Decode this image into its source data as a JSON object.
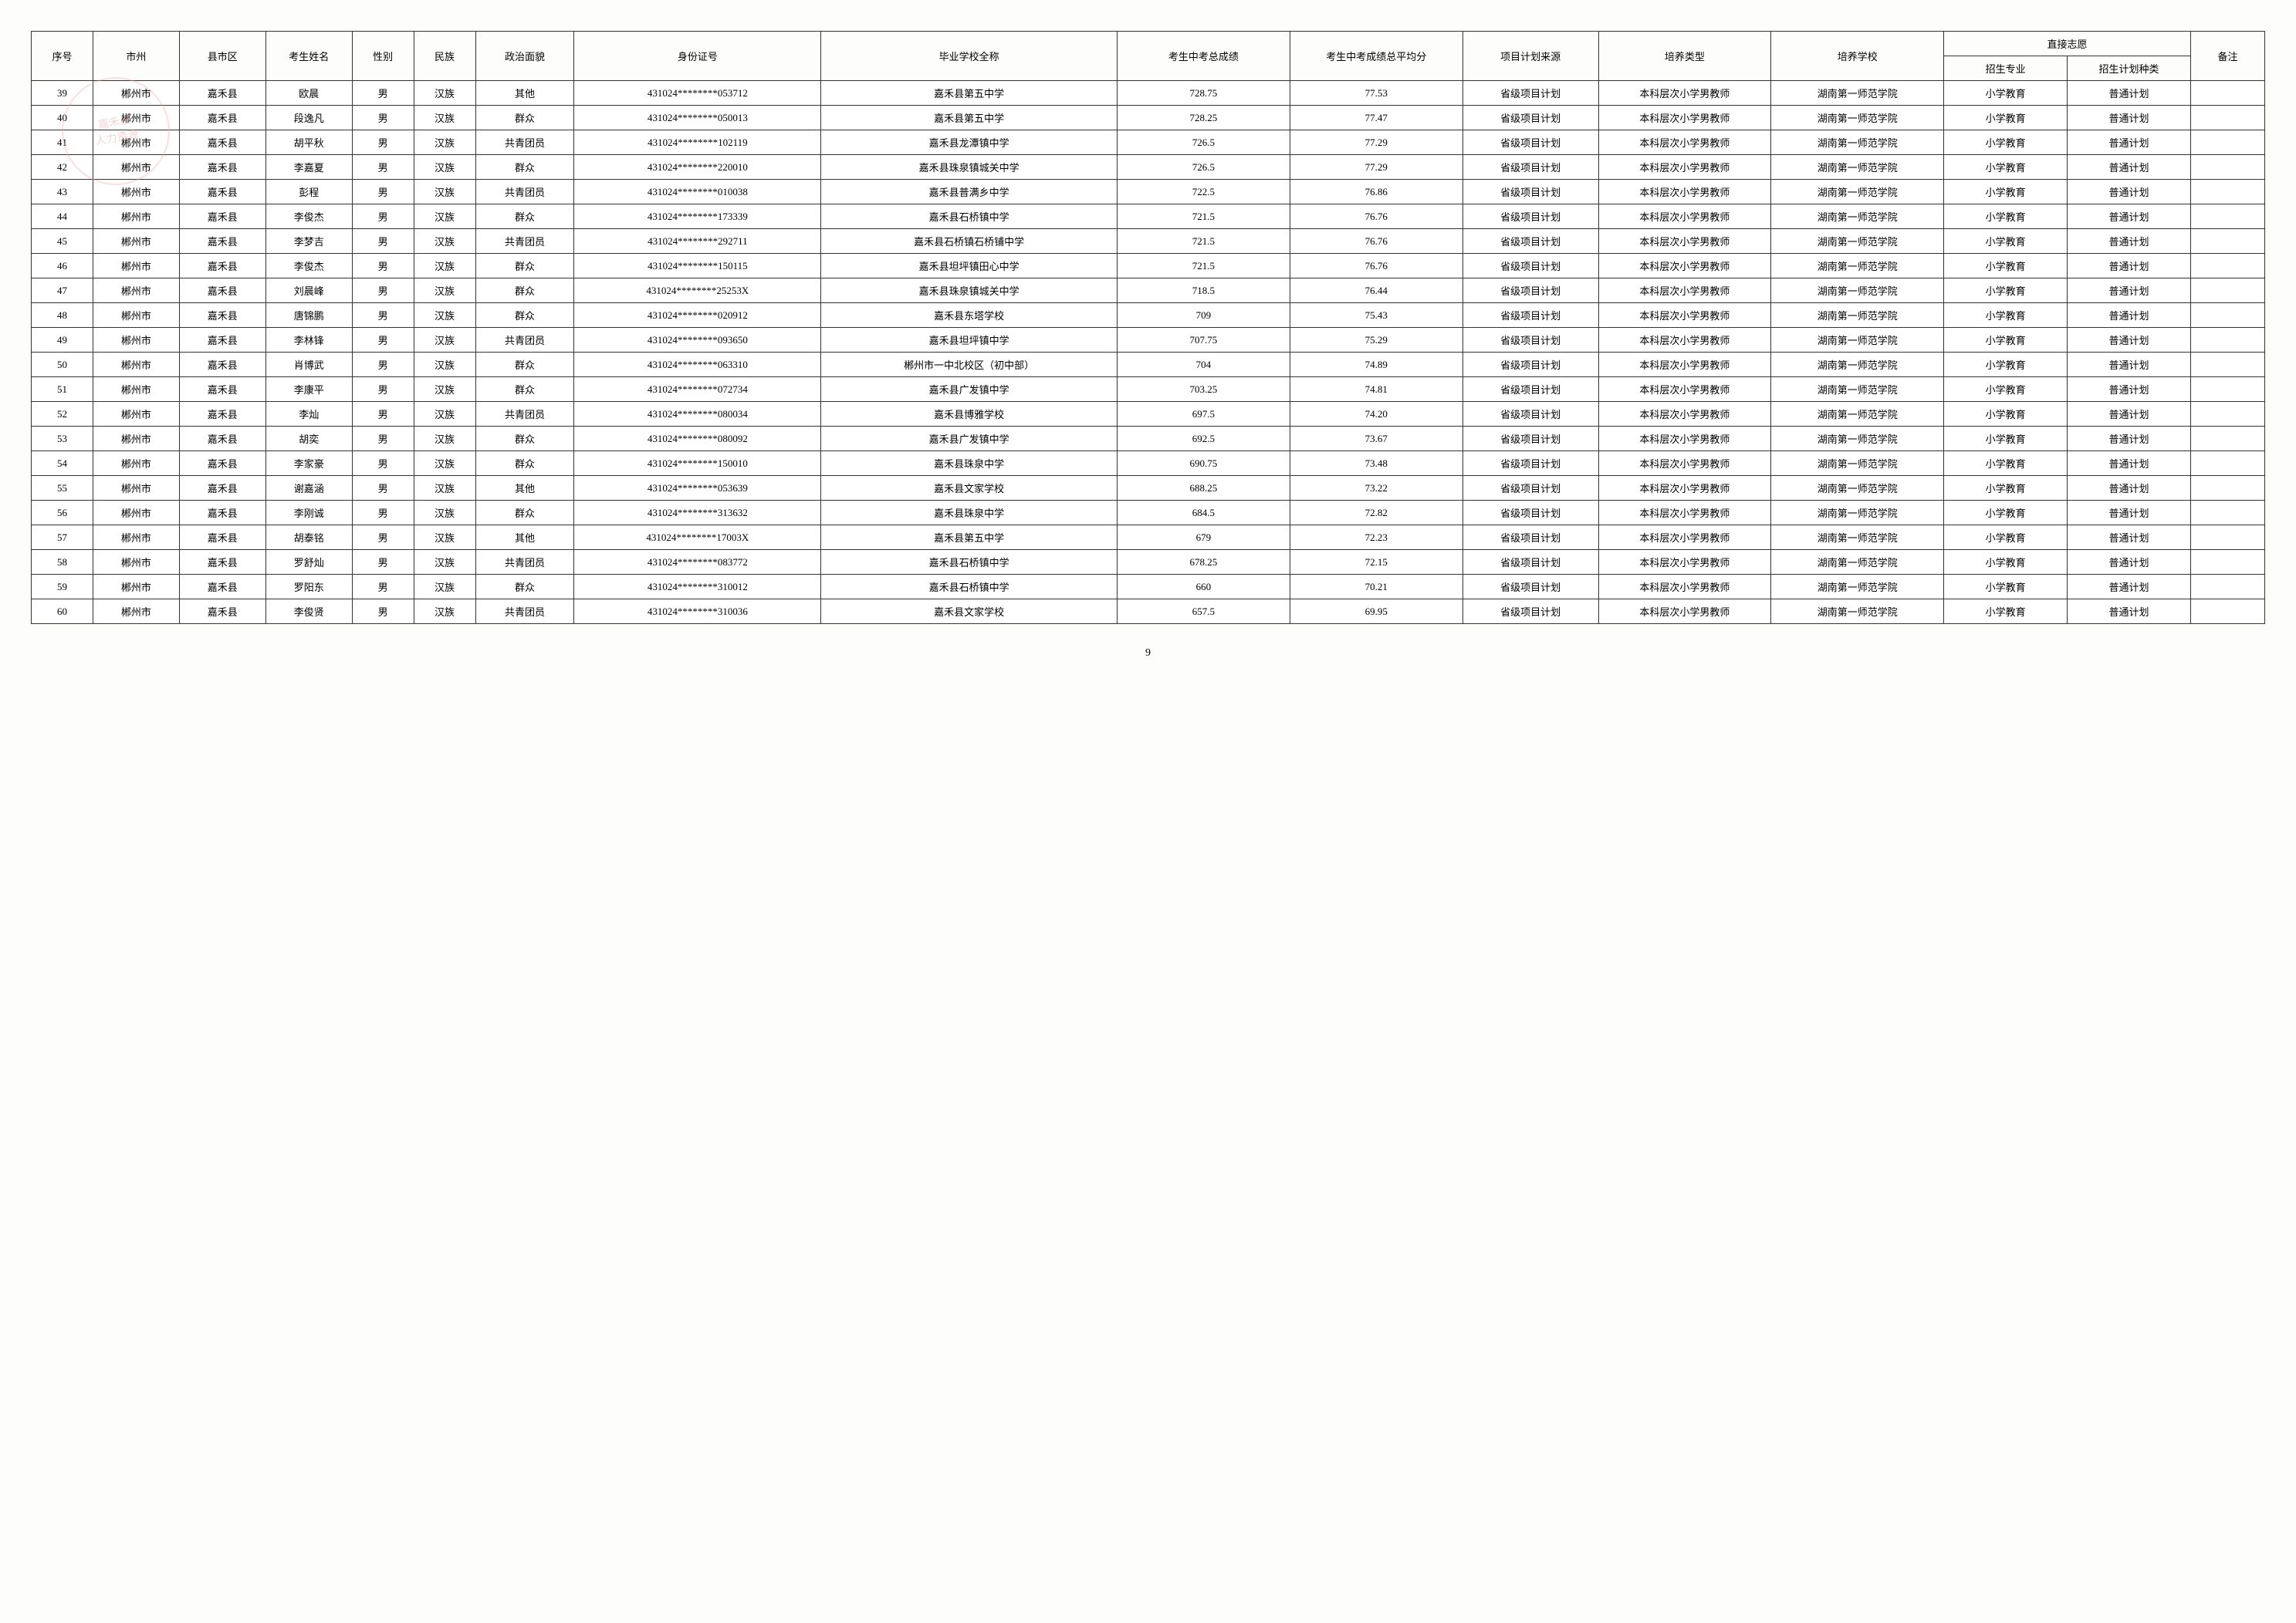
{
  "watermark": {
    "line1": "嘉禾县",
    "line2": "人力资源"
  },
  "headers": {
    "seq": "序号",
    "city": "市州",
    "county": "县市区",
    "name": "考生姓名",
    "gender": "性别",
    "ethnic": "民族",
    "politics": "政治面貌",
    "id": "身份证号",
    "school": "毕业学校全称",
    "score": "考生中考总成绩",
    "avg": "考生中考成绩总平均分",
    "source": "项目计划来源",
    "type": "培养类型",
    "univ": "培养学校",
    "wish_group": "直接志愿",
    "major": "招生专业",
    "plan": "招生计划种类",
    "remark": "备注"
  },
  "rows": [
    {
      "seq": "39",
      "city": "郴州市",
      "county": "嘉禾县",
      "name": "欧晨",
      "gender": "男",
      "ethnic": "汉族",
      "politics": "其他",
      "id": "431024********053712",
      "school": "嘉禾县第五中学",
      "score": "728.75",
      "avg": "77.53",
      "source": "省级项目计划",
      "type": "本科层次小学男教师",
      "univ": "湖南第一师范学院",
      "major": "小学教育",
      "plan": "普通计划",
      "remark": ""
    },
    {
      "seq": "40",
      "city": "郴州市",
      "county": "嘉禾县",
      "name": "段逸凡",
      "gender": "男",
      "ethnic": "汉族",
      "politics": "群众",
      "id": "431024********050013",
      "school": "嘉禾县第五中学",
      "score": "728.25",
      "avg": "77.47",
      "source": "省级项目计划",
      "type": "本科层次小学男教师",
      "univ": "湖南第一师范学院",
      "major": "小学教育",
      "plan": "普通计划",
      "remark": ""
    },
    {
      "seq": "41",
      "city": "郴州市",
      "county": "嘉禾县",
      "name": "胡平秋",
      "gender": "男",
      "ethnic": "汉族",
      "politics": "共青团员",
      "id": "431024********102119",
      "school": "嘉禾县龙潭镇中学",
      "score": "726.5",
      "avg": "77.29",
      "source": "省级项目计划",
      "type": "本科层次小学男教师",
      "univ": "湖南第一师范学院",
      "major": "小学教育",
      "plan": "普通计划",
      "remark": ""
    },
    {
      "seq": "42",
      "city": "郴州市",
      "county": "嘉禾县",
      "name": "李嘉夏",
      "gender": "男",
      "ethnic": "汉族",
      "politics": "群众",
      "id": "431024********220010",
      "school": "嘉禾县珠泉镇城关中学",
      "score": "726.5",
      "avg": "77.29",
      "source": "省级项目计划",
      "type": "本科层次小学男教师",
      "univ": "湖南第一师范学院",
      "major": "小学教育",
      "plan": "普通计划",
      "remark": ""
    },
    {
      "seq": "43",
      "city": "郴州市",
      "county": "嘉禾县",
      "name": "彭程",
      "gender": "男",
      "ethnic": "汉族",
      "politics": "共青团员",
      "id": "431024********010038",
      "school": "嘉禾县普满乡中学",
      "score": "722.5",
      "avg": "76.86",
      "source": "省级项目计划",
      "type": "本科层次小学男教师",
      "univ": "湖南第一师范学院",
      "major": "小学教育",
      "plan": "普通计划",
      "remark": ""
    },
    {
      "seq": "44",
      "city": "郴州市",
      "county": "嘉禾县",
      "name": "李俊杰",
      "gender": "男",
      "ethnic": "汉族",
      "politics": "群众",
      "id": "431024********173339",
      "school": "嘉禾县石桥镇中学",
      "score": "721.5",
      "avg": "76.76",
      "source": "省级项目计划",
      "type": "本科层次小学男教师",
      "univ": "湖南第一师范学院",
      "major": "小学教育",
      "plan": "普通计划",
      "remark": ""
    },
    {
      "seq": "45",
      "city": "郴州市",
      "county": "嘉禾县",
      "name": "李梦吉",
      "gender": "男",
      "ethnic": "汉族",
      "politics": "共青团员",
      "id": "431024********292711",
      "school": "嘉禾县石桥镇石桥铺中学",
      "score": "721.5",
      "avg": "76.76",
      "source": "省级项目计划",
      "type": "本科层次小学男教师",
      "univ": "湖南第一师范学院",
      "major": "小学教育",
      "plan": "普通计划",
      "remark": ""
    },
    {
      "seq": "46",
      "city": "郴州市",
      "county": "嘉禾县",
      "name": "李俊杰",
      "gender": "男",
      "ethnic": "汉族",
      "politics": "群众",
      "id": "431024********150115",
      "school": "嘉禾县坦坪镇田心中学",
      "score": "721.5",
      "avg": "76.76",
      "source": "省级项目计划",
      "type": "本科层次小学男教师",
      "univ": "湖南第一师范学院",
      "major": "小学教育",
      "plan": "普通计划",
      "remark": ""
    },
    {
      "seq": "47",
      "city": "郴州市",
      "county": "嘉禾县",
      "name": "刘晨峰",
      "gender": "男",
      "ethnic": "汉族",
      "politics": "群众",
      "id": "431024********25253X",
      "school": "嘉禾县珠泉镇城关中学",
      "score": "718.5",
      "avg": "76.44",
      "source": "省级项目计划",
      "type": "本科层次小学男教师",
      "univ": "湖南第一师范学院",
      "major": "小学教育",
      "plan": "普通计划",
      "remark": ""
    },
    {
      "seq": "48",
      "city": "郴州市",
      "county": "嘉禾县",
      "name": "唐锦鹏",
      "gender": "男",
      "ethnic": "汉族",
      "politics": "群众",
      "id": "431024********020912",
      "school": "嘉禾县东塔学校",
      "score": "709",
      "avg": "75.43",
      "source": "省级项目计划",
      "type": "本科层次小学男教师",
      "univ": "湖南第一师范学院",
      "major": "小学教育",
      "plan": "普通计划",
      "remark": ""
    },
    {
      "seq": "49",
      "city": "郴州市",
      "county": "嘉禾县",
      "name": "李林锋",
      "gender": "男",
      "ethnic": "汉族",
      "politics": "共青团员",
      "id": "431024********093650",
      "school": "嘉禾县坦坪镇中学",
      "score": "707.75",
      "avg": "75.29",
      "source": "省级项目计划",
      "type": "本科层次小学男教师",
      "univ": "湖南第一师范学院",
      "major": "小学教育",
      "plan": "普通计划",
      "remark": ""
    },
    {
      "seq": "50",
      "city": "郴州市",
      "county": "嘉禾县",
      "name": "肖博武",
      "gender": "男",
      "ethnic": "汉族",
      "politics": "群众",
      "id": "431024********063310",
      "school": "郴州市一中北校区（初中部）",
      "score": "704",
      "avg": "74.89",
      "source": "省级项目计划",
      "type": "本科层次小学男教师",
      "univ": "湖南第一师范学院",
      "major": "小学教育",
      "plan": "普通计划",
      "remark": ""
    },
    {
      "seq": "51",
      "city": "郴州市",
      "county": "嘉禾县",
      "name": "李康平",
      "gender": "男",
      "ethnic": "汉族",
      "politics": "群众",
      "id": "431024********072734",
      "school": "嘉禾县广发镇中学",
      "score": "703.25",
      "avg": "74.81",
      "source": "省级项目计划",
      "type": "本科层次小学男教师",
      "univ": "湖南第一师范学院",
      "major": "小学教育",
      "plan": "普通计划",
      "remark": ""
    },
    {
      "seq": "52",
      "city": "郴州市",
      "county": "嘉禾县",
      "name": "李灿",
      "gender": "男",
      "ethnic": "汉族",
      "politics": "共青团员",
      "id": "431024********080034",
      "school": "嘉禾县博雅学校",
      "score": "697.5",
      "avg": "74.20",
      "source": "省级项目计划",
      "type": "本科层次小学男教师",
      "univ": "湖南第一师范学院",
      "major": "小学教育",
      "plan": "普通计划",
      "remark": ""
    },
    {
      "seq": "53",
      "city": "郴州市",
      "county": "嘉禾县",
      "name": "胡奕",
      "gender": "男",
      "ethnic": "汉族",
      "politics": "群众",
      "id": "431024********080092",
      "school": "嘉禾县广发镇中学",
      "score": "692.5",
      "avg": "73.67",
      "source": "省级项目计划",
      "type": "本科层次小学男教师",
      "univ": "湖南第一师范学院",
      "major": "小学教育",
      "plan": "普通计划",
      "remark": ""
    },
    {
      "seq": "54",
      "city": "郴州市",
      "county": "嘉禾县",
      "name": "李家豪",
      "gender": "男",
      "ethnic": "汉族",
      "politics": "群众",
      "id": "431024********150010",
      "school": "嘉禾县珠泉中学",
      "score": "690.75",
      "avg": "73.48",
      "source": "省级项目计划",
      "type": "本科层次小学男教师",
      "univ": "湖南第一师范学院",
      "major": "小学教育",
      "plan": "普通计划",
      "remark": ""
    },
    {
      "seq": "55",
      "city": "郴州市",
      "county": "嘉禾县",
      "name": "谢嘉涵",
      "gender": "男",
      "ethnic": "汉族",
      "politics": "其他",
      "id": "431024********053639",
      "school": "嘉禾县文家学校",
      "score": "688.25",
      "avg": "73.22",
      "source": "省级项目计划",
      "type": "本科层次小学男教师",
      "univ": "湖南第一师范学院",
      "major": "小学教育",
      "plan": "普通计划",
      "remark": ""
    },
    {
      "seq": "56",
      "city": "郴州市",
      "county": "嘉禾县",
      "name": "李刚诚",
      "gender": "男",
      "ethnic": "汉族",
      "politics": "群众",
      "id": "431024********313632",
      "school": "嘉禾县珠泉中学",
      "score": "684.5",
      "avg": "72.82",
      "source": "省级项目计划",
      "type": "本科层次小学男教师",
      "univ": "湖南第一师范学院",
      "major": "小学教育",
      "plan": "普通计划",
      "remark": ""
    },
    {
      "seq": "57",
      "city": "郴州市",
      "county": "嘉禾县",
      "name": "胡泰铭",
      "gender": "男",
      "ethnic": "汉族",
      "politics": "其他",
      "id": "431024********17003X",
      "school": "嘉禾县第五中学",
      "score": "679",
      "avg": "72.23",
      "source": "省级项目计划",
      "type": "本科层次小学男教师",
      "univ": "湖南第一师范学院",
      "major": "小学教育",
      "plan": "普通计划",
      "remark": ""
    },
    {
      "seq": "58",
      "city": "郴州市",
      "county": "嘉禾县",
      "name": "罗舒灿",
      "gender": "男",
      "ethnic": "汉族",
      "politics": "共青团员",
      "id": "431024********083772",
      "school": "嘉禾县石桥镇中学",
      "score": "678.25",
      "avg": "72.15",
      "source": "省级项目计划",
      "type": "本科层次小学男教师",
      "univ": "湖南第一师范学院",
      "major": "小学教育",
      "plan": "普通计划",
      "remark": ""
    },
    {
      "seq": "59",
      "city": "郴州市",
      "county": "嘉禾县",
      "name": "罗阳东",
      "gender": "男",
      "ethnic": "汉族",
      "politics": "群众",
      "id": "431024********310012",
      "school": "嘉禾县石桥镇中学",
      "score": "660",
      "avg": "70.21",
      "source": "省级项目计划",
      "type": "本科层次小学男教师",
      "univ": "湖南第一师范学院",
      "major": "小学教育",
      "plan": "普通计划",
      "remark": ""
    },
    {
      "seq": "60",
      "city": "郴州市",
      "county": "嘉禾县",
      "name": "李俊贤",
      "gender": "男",
      "ethnic": "汉族",
      "politics": "共青团员",
      "id": "431024********310036",
      "school": "嘉禾县文家学校",
      "score": "657.5",
      "avg": "69.95",
      "source": "省级项目计划",
      "type": "本科层次小学男教师",
      "univ": "湖南第一师范学院",
      "major": "小学教育",
      "plan": "普通计划",
      "remark": ""
    }
  ],
  "page_number": "9"
}
